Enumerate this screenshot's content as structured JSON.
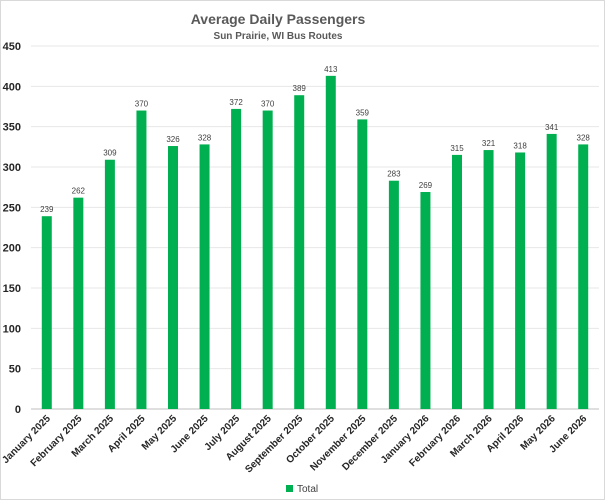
{
  "chart_data": {
    "type": "bar",
    "title": "Average Daily Passengers",
    "subtitle": "Sun Prairie, WI Bus Routes",
    "xlabel": "",
    "ylabel": "",
    "ylim": [
      0,
      450
    ],
    "yticks": [
      0,
      50,
      100,
      150,
      200,
      250,
      300,
      350,
      400,
      450
    ],
    "grid": true,
    "legend_position": "bottom",
    "categories": [
      "January 2025",
      "February 2025",
      "March 2025",
      "April 2025",
      "May 2025",
      "June 2025",
      "July 2025",
      "August 2025",
      "September 2025",
      "October 2025",
      "November 2025",
      "December 2025",
      "January 2026",
      "February 2026",
      "March 2026",
      "April 2026",
      "May 2026",
      "June 2026"
    ],
    "series": [
      {
        "name": "Total",
        "color": "#00b050",
        "values": [
          239,
          262,
          309,
          370,
          326,
          328,
          372,
          370,
          389,
          413,
          359,
          283,
          269,
          315,
          321,
          318,
          341,
          328
        ]
      }
    ]
  }
}
